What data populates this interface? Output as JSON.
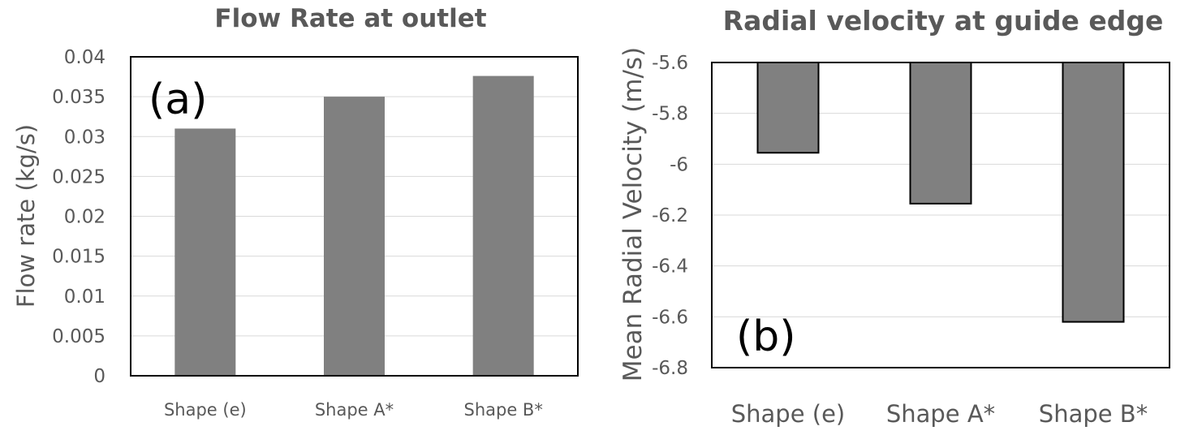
{
  "chart_data": [
    {
      "type": "bar",
      "title": "Flow Rate at outlet",
      "panel_label": "(a)",
      "categories": [
        "Shape (e)",
        "Shape A*",
        "Shape B*"
      ],
      "values": [
        0.031,
        0.035,
        0.0376
      ],
      "ylabel": "Flow rate (kg/s)",
      "xlabel": "",
      "ylim": [
        0,
        0.04
      ],
      "yticks": [
        "0",
        "0.005",
        "0.01",
        "0.015",
        "0.02",
        "0.025",
        "0.03",
        "0.035",
        "0.04"
      ],
      "grid": true,
      "bar_color": "#808080",
      "bar_outline": false
    },
    {
      "type": "bar",
      "title": "Radial velocity at guide edge",
      "panel_label": "(b)",
      "categories": [
        "Shape (e)",
        "Shape A*",
        "Shape B*"
      ],
      "values": [
        -5.955,
        -6.155,
        -6.62
      ],
      "ylabel": "Mean Radial Velocity (m/s)",
      "xlabel": "",
      "ylim": [
        -6.8,
        -5.6
      ],
      "yticks": [
        "-5.6",
        "-5.8",
        "-6",
        "-6.2",
        "-6.4",
        "-6.6",
        "-6.8"
      ],
      "grid": true,
      "bar_color": "#808080",
      "bar_outline": true
    }
  ]
}
